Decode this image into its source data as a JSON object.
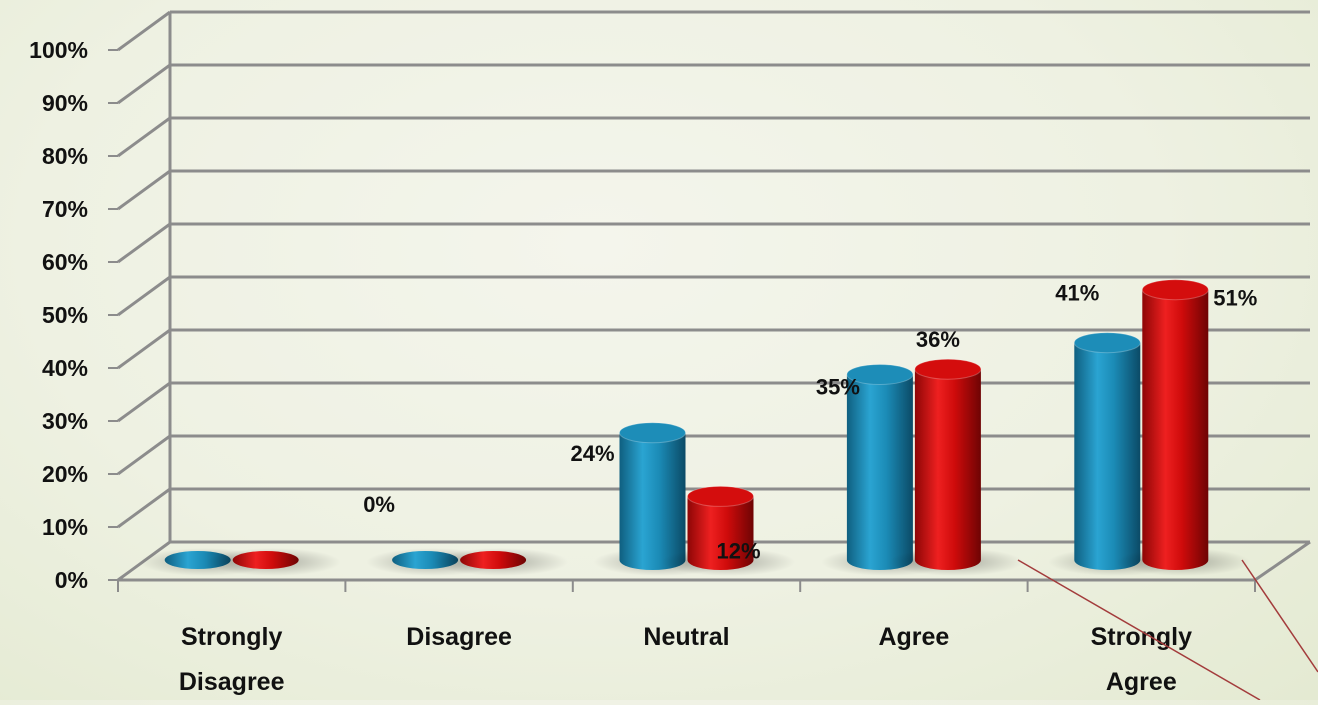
{
  "colors": {
    "series1": "#1d8db8",
    "series2": "#d40d0d",
    "grid": "#8c8c8c",
    "text": "#111111",
    "leader": "#a33c3c"
  },
  "chart_data": {
    "type": "bar",
    "style": "3d-cylinder",
    "categories": [
      [
        "Strongly",
        "Disagree"
      ],
      [
        "Disagree"
      ],
      [
        "Neutral"
      ],
      [
        "Agree"
      ],
      [
        "Strongly",
        "Agree"
      ]
    ],
    "series": [
      {
        "color": "#1d8db8",
        "values": [
          0,
          0,
          24,
          35,
          41
        ]
      },
      {
        "color": "#d40d0d",
        "values": [
          0,
          0,
          12,
          36,
          51
        ]
      }
    ],
    "data_labels": [
      {
        "text": "24%"
      },
      {
        "text": "12%"
      },
      {
        "text": "35%"
      },
      {
        "text": "36%"
      },
      {
        "text": "41%"
      },
      {
        "text": "51%"
      },
      {
        "text": "0%"
      }
    ],
    "yticks": [
      "0%",
      "10%",
      "20%",
      "30%",
      "40%",
      "50%",
      "60%",
      "70%",
      "80%",
      "90%",
      "100%"
    ],
    "ylim": [
      0,
      100
    ],
    "grid": true,
    "legend": "none",
    "title": "",
    "xlabel": "",
    "ylabel": ""
  }
}
